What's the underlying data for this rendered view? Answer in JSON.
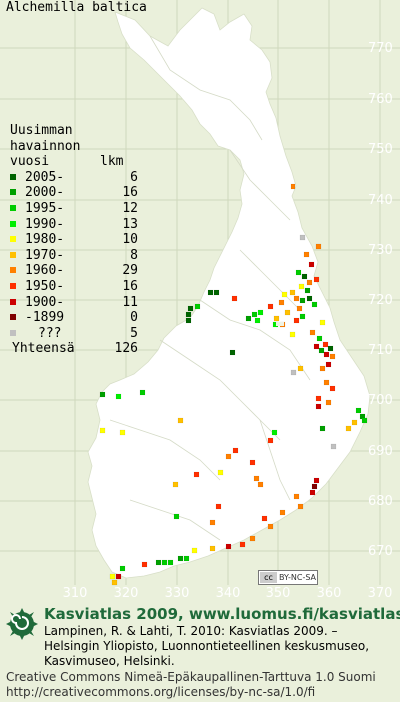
{
  "title": "Alchemilla baltica",
  "legend": {
    "header_line1": "Uusimman",
    "header_line2": "havainnon",
    "header_line3": "vuosi",
    "header_count": "lkm",
    "items": [
      {
        "label": "2005-",
        "count": "6",
        "color": "#006400"
      },
      {
        "label": "2000-",
        "count": "16",
        "color": "#00a000"
      },
      {
        "label": "1995-",
        "count": "12",
        "color": "#00cc00"
      },
      {
        "label": "1990-",
        "count": "13",
        "color": "#00ee00"
      },
      {
        "label": "1980-",
        "count": "10",
        "color": "#ffff00"
      },
      {
        "label": "1970-",
        "count": "8",
        "color": "#ffc000"
      },
      {
        "label": "1960-",
        "count": "29",
        "color": "#ff8000"
      },
      {
        "label": "1950-",
        "count": "16",
        "color": "#ff3000"
      },
      {
        "label": "1900-",
        "count": "11",
        "color": "#cc0000"
      },
      {
        "label": "-1899",
        "count": "0",
        "color": "#800000"
      },
      {
        "label": "???",
        "count": "5",
        "color": "#c0c0c0"
      }
    ],
    "total_label": "Yhteensä",
    "total_count": "126"
  },
  "grid": {
    "y_labels": [
      "770",
      "760",
      "750",
      "740",
      "730",
      "720",
      "710",
      "700",
      "690",
      "680",
      "670"
    ],
    "x_labels": [
      "310",
      "320",
      "330",
      "340",
      "350",
      "360",
      "370"
    ]
  },
  "license_badge": {
    "cc": "cc",
    "text": "BY-NC-SA"
  },
  "footer": {
    "site": "Kasviatlas 2009, www.luomus.fi/kasviatlas",
    "citation_line1": "Lampinen, R. & Lahti, T. 2010: Kasviatlas 2009. –",
    "citation_line2": "Helsingin Yliopisto, Luonnontieteellinen keskusmuseo,",
    "citation_line3": "Kasvimuseo, Helsinki.",
    "license_line1": "Creative Commons Nimeä-Epäkaupallinen-Tarttuva 1.0 Suomi",
    "license_line2": "http://creativecommons.org/licenses/by-nc-sa/1.0/fi"
  },
  "colors": {
    "background": "#eaf0db",
    "land": "#ffffff",
    "grid": "#cfd8bd",
    "label": "#ffffff",
    "footer_green": "#1f6a3a"
  }
}
